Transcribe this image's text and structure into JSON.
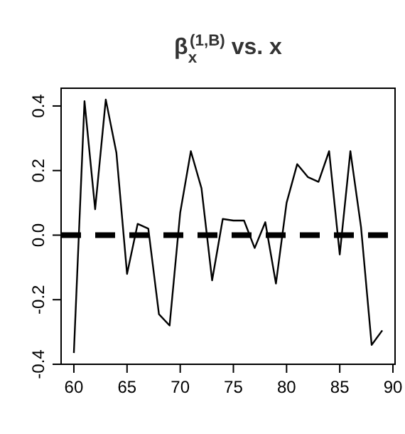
{
  "chart_data": {
    "type": "line",
    "title": "β$_{x}$$^{(1,B)}$ vs. x",
    "x": [
      60,
      61,
      62,
      63,
      64,
      65,
      66,
      67,
      68,
      69,
      70,
      71,
      72,
      73,
      74,
      75,
      76,
      77,
      78,
      79,
      80,
      81,
      82,
      83,
      84,
      85,
      86,
      87,
      88,
      89
    ],
    "series": [
      {
        "color": "#000000",
        "values": [
          -0.365,
          0.415,
          0.08,
          0.42,
          0.255,
          -0.12,
          0.035,
          0.02,
          -0.245,
          -0.28,
          0.07,
          0.26,
          0.145,
          -0.14,
          0.05,
          0.045,
          0.045,
          -0.04,
          0.04,
          -0.15,
          0.1,
          0.22,
          0.18,
          0.165,
          0.26,
          -0.06,
          0.26,
          0.025,
          -0.34,
          -0.295
        ]
      }
    ],
    "xlim": [
      58.8,
      90.2
    ],
    "xticks": [
      60,
      65,
      70,
      75,
      80,
      85,
      90
    ],
    "ylim": [
      -0.4,
      0.455
    ],
    "yticks": [
      {
        "value": -0.4,
        "label": "-0.4"
      },
      {
        "value": -0.2,
        "label": "-0.2"
      },
      {
        "value": 0,
        "label": "0.0"
      },
      {
        "value": 0.2,
        "label": "0.2"
      },
      {
        "value": 0.4,
        "label": "0.4"
      }
    ],
    "ref_lines": [
      {
        "axis": "y",
        "value": 0,
        "color": "#000000",
        "line_style": "dashed"
      }
    ],
    "marker": "none",
    "line_style": "solid"
  }
}
